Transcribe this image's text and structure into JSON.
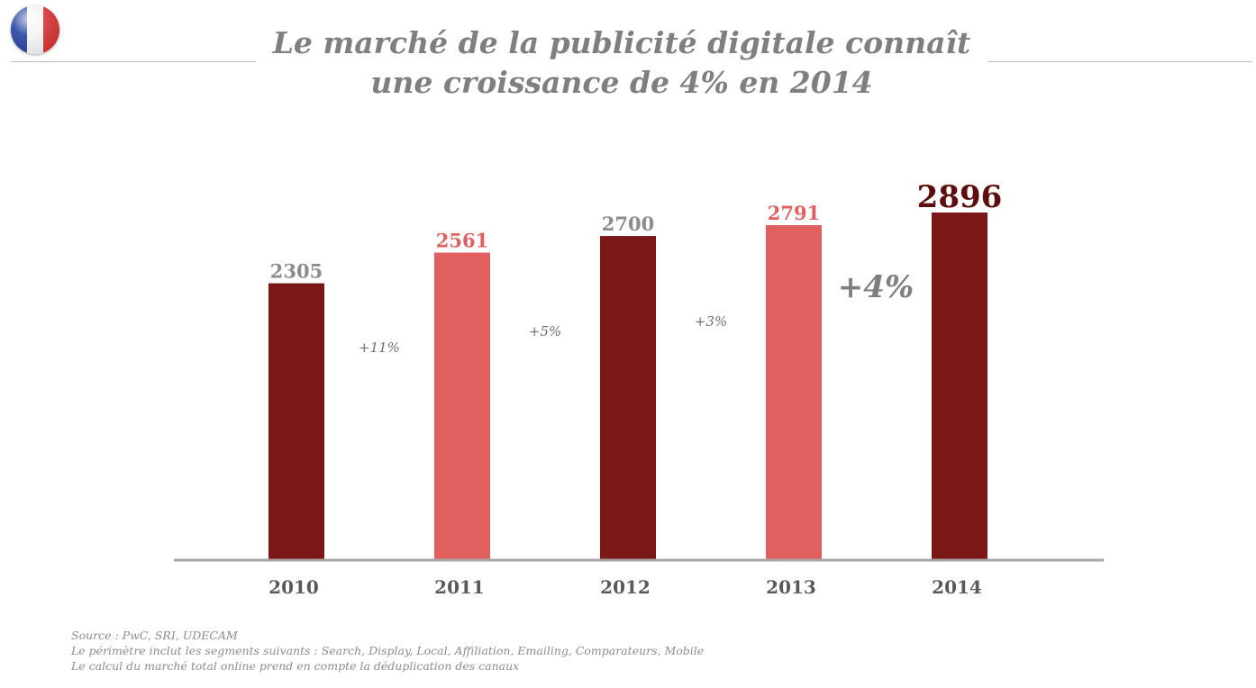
{
  "colors": {
    "flag_blue": "#1a3a9c",
    "flag_white": "#f4f4f4",
    "flag_red": "#d32a2a",
    "dark_bar": "#7b1717",
    "light_bar": "#e06060",
    "grey_label": "#8c8c8c",
    "highlight_label": "#5c0e0e",
    "axis": "#a6a6a6"
  },
  "header": {
    "flag_icon": "france-flag-icon",
    "title_line1": "Le marché de la publicité digitale connaît",
    "title_line2": "une croissance de 4% en 2014"
  },
  "chart_data": {
    "type": "bar",
    "categories": [
      "2010",
      "2011",
      "2012",
      "2013",
      "2014"
    ],
    "values": [
      2305,
      2561,
      2700,
      2791,
      2896
    ],
    "data_labels": [
      "2305",
      "2561",
      "2700",
      "2791",
      "2896"
    ],
    "bar_styles": [
      "dark",
      "light",
      "dark",
      "light",
      "dark"
    ],
    "label_styles": [
      "grey",
      "light",
      "grey",
      "light",
      "highlight"
    ],
    "growth_labels": [
      "+11%",
      "+5%",
      "+3%",
      "+4%"
    ],
    "growth_emphasis": [
      false,
      false,
      false,
      true
    ],
    "title": "",
    "xlabel": "",
    "ylabel": "",
    "ylim": [
      0,
      2896
    ],
    "grid": false
  },
  "footnotes": {
    "line1": "Source : PwC, SRI, UDECAM",
    "line2": "Le périmètre inclut les segments suivants : Search, Display, Local, Affiliation, Emailing, Comparateurs, Mobile",
    "line3": "Le calcul du marché total online prend en compte la déduplication des canaux"
  }
}
